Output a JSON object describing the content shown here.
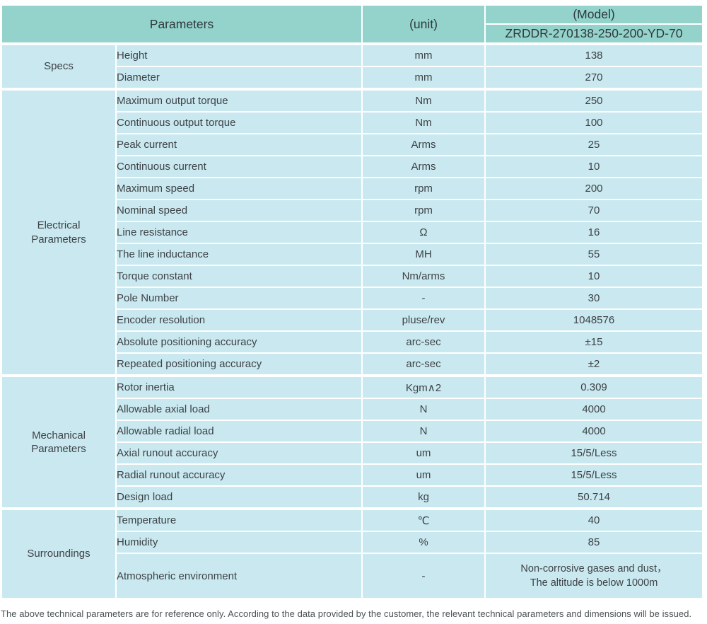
{
  "header": {
    "parameters_label": "Parameters",
    "unit_label": "(unit)",
    "model_label": "(Model)",
    "model_value": "ZRDDR-270138-250-200-YD-70"
  },
  "groups": [
    {
      "label": "Specs",
      "rows": [
        {
          "param": "Height",
          "unit": "mm",
          "value": "138"
        },
        {
          "param": "Diameter",
          "unit": "mm",
          "value": "270"
        }
      ]
    },
    {
      "label": "Electrical Parameters",
      "rows": [
        {
          "param": "Maximum output torque",
          "unit": "Nm",
          "value": "250"
        },
        {
          "param": "Continuous output torque",
          "unit": "Nm",
          "value": "100"
        },
        {
          "param": "Peak current",
          "unit": "Arms",
          "value": "25"
        },
        {
          "param": "Continuous current",
          "unit": "Arms",
          "value": "10"
        },
        {
          "param": "Maximum speed",
          "unit": "rpm",
          "value": "200"
        },
        {
          "param": "Nominal speed",
          "unit": "rpm",
          "value": "70"
        },
        {
          "param": "Line resistance",
          "unit": "Ω",
          "value": "16"
        },
        {
          "param": "The line inductance",
          "unit": "MH",
          "value": "55"
        },
        {
          "param": "Torque constant",
          "unit": "Nm/arms",
          "value": "10"
        },
        {
          "param": "Pole Number",
          "unit": "-",
          "value": "30"
        },
        {
          "param": "Encoder resolution",
          "unit": "pluse/rev",
          "value": "1048576"
        },
        {
          "param": "Absolute positioning accuracy",
          "unit": "arc-sec",
          "value": "±15"
        },
        {
          "param": "Repeated positioning accuracy",
          "unit": "arc-sec",
          "value": "±2"
        }
      ]
    },
    {
      "label": "Mechanical Parameters",
      "rows": [
        {
          "param": "Rotor inertia",
          "unit": "Kgm∧2",
          "value": "0.309"
        },
        {
          "param": "Allowable axial load",
          "unit": "N",
          "value": "4000"
        },
        {
          "param": "Allowable radial load",
          "unit": "N",
          "value": "4000"
        },
        {
          "param": "Axial runout accuracy",
          "unit": "um",
          "value": "15/5/Less"
        },
        {
          "param": "Radial runout accuracy",
          "unit": "um",
          "value": "15/5/Less"
        },
        {
          "param": "Design load",
          "unit": "kg",
          "value": "50.714"
        }
      ]
    },
    {
      "label": "Surroundings",
      "rows": [
        {
          "param": "Temperature",
          "unit": "℃",
          "value": "40"
        },
        {
          "param": "Humidity",
          "unit": "%",
          "value": "85"
        },
        {
          "param": "Atmospheric environment",
          "unit": "-",
          "value_lines": [
            "Non-corrosive gases and dust，",
            "The altitude is below 1000m"
          ]
        }
      ]
    }
  ],
  "footer": {
    "note": "The above technical parameters are for reference only. According to the data provided by the customer, the relevant technical parameters and dimensions will be issued."
  },
  "colors": {
    "header_bg": "#93d3cc",
    "row_bg": "#c9e8ef",
    "text": "#3d4347"
  }
}
